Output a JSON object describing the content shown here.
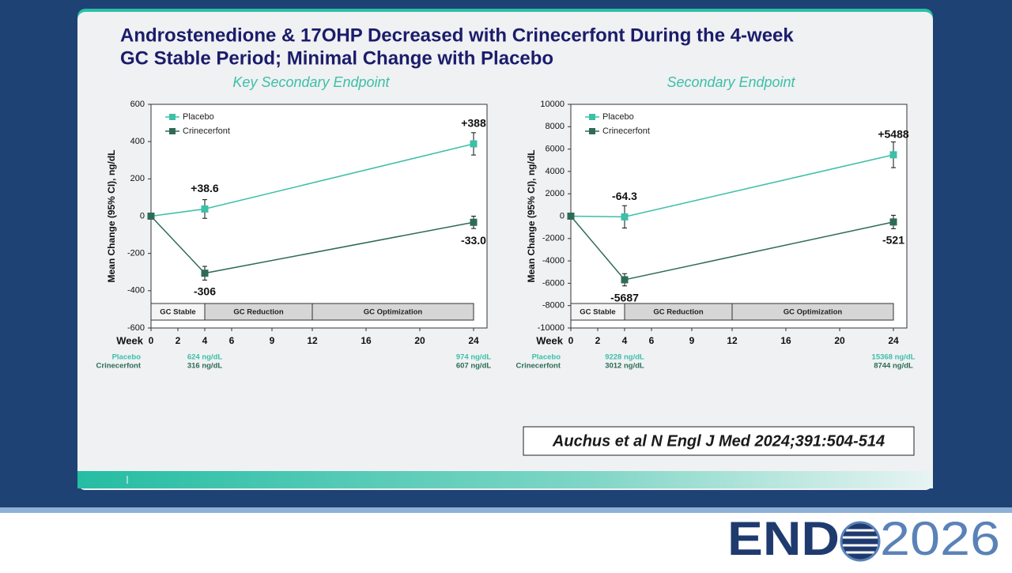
{
  "title_lines": [
    "Androstenedione & 17OHP Decreased with Crinecerfont During the 4-week",
    "GC Stable Period; Minimal Change with Placebo"
  ],
  "citation": "Auchus et al N Engl J Med 2024;391:504-514",
  "logo": {
    "left": "END",
    "right": "2026"
  },
  "chart_data": [
    {
      "type": "line",
      "title": "Key Secondary Endpoint",
      "y_label": "Mean Change (95% CI), ng/dL",
      "x_label": "Week",
      "x": [
        0,
        4,
        24
      ],
      "xlim": [
        0,
        25
      ],
      "xticks": [
        0,
        2,
        4,
        6,
        9,
        12,
        16,
        20,
        24
      ],
      "ylim": [
        -600,
        600
      ],
      "yticks": [
        -600,
        -400,
        -200,
        0,
        200,
        400,
        600
      ],
      "legend": "upper left",
      "series": [
        {
          "name": "Placebo",
          "color": "#3dbfa8",
          "values": [
            0,
            38.6,
            388
          ],
          "errors": [
            null,
            50,
            60
          ],
          "value_labels": [
            null,
            "+38.6",
            "+388"
          ]
        },
        {
          "name": "Crinecerfont",
          "color": "#2e6b55",
          "values": [
            0,
            -306,
            -33.0
          ],
          "errors": [
            null,
            37,
            33
          ],
          "value_labels": [
            null,
            "-306",
            "-33.0"
          ]
        }
      ],
      "phases": [
        {
          "label": "GC Stable",
          "start": 0,
          "end": 4,
          "color": "#f4f4f4"
        },
        {
          "label": "GC Reduction",
          "start": 4,
          "end": 12,
          "color": "#d6d6d6"
        },
        {
          "label": "GC Optimization",
          "start": 12,
          "end": 24,
          "color": "#d6d6d6"
        }
      ],
      "baseline": {
        "x": [
          4,
          24
        ],
        "rows": [
          [
            "624 ng/dL",
            "974 ng/dL"
          ],
          [
            "316 ng/dL",
            "607 ng/dL"
          ]
        ]
      }
    },
    {
      "type": "line",
      "title": "Secondary Endpoint",
      "y_label": "Mean Change (95% CI), ng/dL",
      "x_label": "Week",
      "x": [
        0,
        4,
        24
      ],
      "xlim": [
        0,
        25
      ],
      "xticks": [
        0,
        2,
        4,
        6,
        9,
        12,
        16,
        20,
        24
      ],
      "ylim": [
        -10000,
        10000
      ],
      "yticks": [
        -10000,
        -8000,
        -6000,
        -4000,
        -2000,
        0,
        2000,
        4000,
        6000,
        8000,
        10000
      ],
      "legend": "upper left",
      "series": [
        {
          "name": "Placebo",
          "color": "#3dbfa8",
          "values": [
            0,
            -64.3,
            5488
          ],
          "errors": [
            null,
            1000,
            1150
          ],
          "value_labels": [
            null,
            "-64.3",
            "+5488"
          ]
        },
        {
          "name": "Crinecerfont",
          "color": "#2e6b55",
          "values": [
            0,
            -5687,
            -521
          ],
          "errors": [
            null,
            550,
            600
          ],
          "value_labels": [
            null,
            "-5687",
            "-521"
          ]
        }
      ],
      "phases": [
        {
          "label": "GC Stable",
          "start": 0,
          "end": 4,
          "color": "#f4f4f4"
        },
        {
          "label": "GC Reduction",
          "start": 4,
          "end": 12,
          "color": "#d6d6d6"
        },
        {
          "label": "GC Optimization",
          "start": 12,
          "end": 24,
          "color": "#d6d6d6"
        }
      ],
      "baseline": {
        "x": [
          4,
          24
        ],
        "rows": [
          [
            "9228 ng/dL",
            "15368 ng/dL"
          ],
          [
            "3012 ng/dL",
            "8744 ng/dL"
          ]
        ]
      }
    }
  ]
}
